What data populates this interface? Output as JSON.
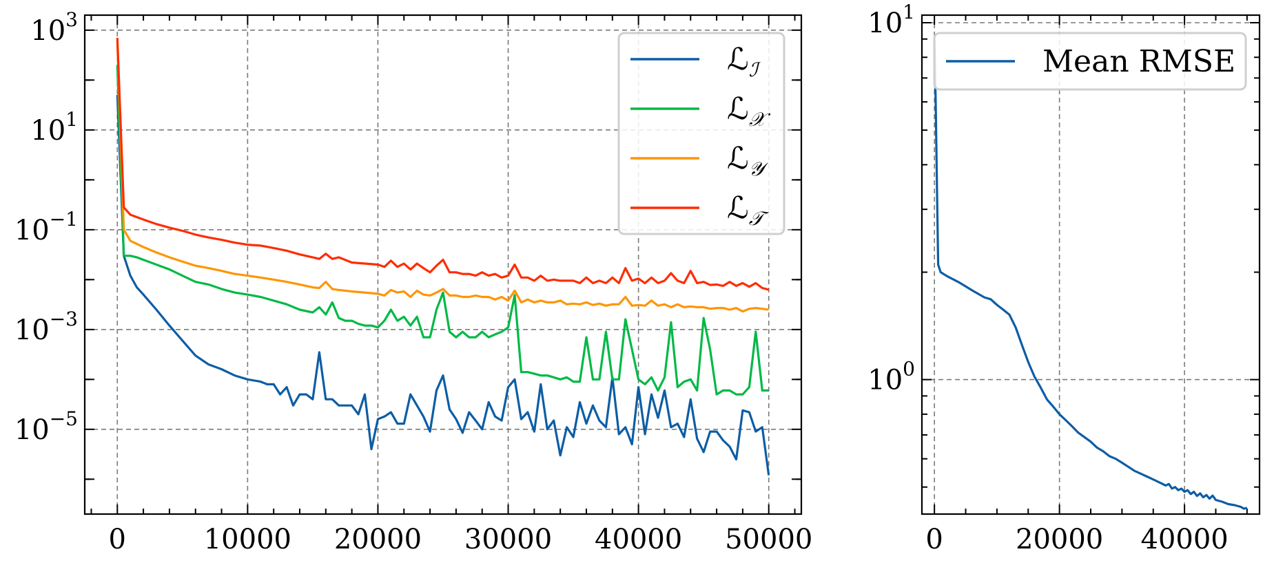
{
  "chart_data": [
    {
      "type": "line",
      "title": "",
      "xlabel": "",
      "ylabel": "",
      "yscale": "log",
      "xlim": [
        -2500,
        52500
      ],
      "ylim": [
        2e-07,
        2000
      ],
      "xticks": [
        0,
        10000,
        20000,
        30000,
        40000,
        50000
      ],
      "xtick_labels": [
        "0",
        "10000",
        "20000",
        "30000",
        "40000",
        "50000"
      ],
      "yticks": [
        1e-05,
        0.001,
        0.1,
        10,
        1000
      ],
      "ytick_labels": [
        {
          "base": "10",
          "exp": "−5"
        },
        {
          "base": "10",
          "exp": "−3"
        },
        {
          "base": "10",
          "exp": "−1"
        },
        {
          "base": "10",
          "exp": "1"
        },
        {
          "base": "10",
          "exp": "3"
        }
      ],
      "grid": true,
      "legend": "top-right",
      "series": [
        {
          "name": "ℒ",
          "subscript": "ℐ",
          "color": "#0c5da5",
          "x": [
            0,
            500,
            1000,
            1500,
            2000,
            3000,
            4000,
            5000,
            6000,
            7000,
            8000,
            9000,
            10000,
            11000,
            11500,
            12000,
            12500,
            13000,
            13500,
            14000,
            14500,
            15000,
            15500,
            16000,
            16500,
            17000,
            17500,
            18000,
            18500,
            19000,
            19500,
            20000,
            20500,
            21000,
            21500,
            22000,
            22500,
            23000,
            23500,
            24000,
            24500,
            25000,
            25500,
            26000,
            26500,
            27000,
            27500,
            28000,
            28500,
            29000,
            29500,
            30000,
            30500,
            31000,
            31500,
            32000,
            32500,
            33000,
            33500,
            34000,
            34500,
            35000,
            35500,
            36000,
            36500,
            37000,
            37500,
            38000,
            38500,
            39000,
            39500,
            40000,
            40500,
            41000,
            41500,
            42000,
            42500,
            43000,
            43500,
            44000,
            44500,
            45000,
            45500,
            46000,
            46500,
            47000,
            47500,
            48000,
            48500,
            49000,
            49500,
            50000
          ],
          "values": [
            50,
            0.03,
            0.012,
            0.007,
            0.005,
            0.0025,
            0.0012,
            0.0006,
            0.0003,
            0.0002,
            0.00016,
            0.00012,
            0.0001,
            9e-05,
            8e-05,
            8e-05,
            5e-05,
            7e-05,
            3e-05,
            5e-05,
            5e-05,
            4e-05,
            0.00035,
            4e-05,
            4e-05,
            3e-05,
            3e-05,
            3e-05,
            2e-05,
            5e-05,
            4e-06,
            1.6e-05,
            1.8e-05,
            2.2e-05,
            1.3e-05,
            1.3e-05,
            5e-05,
            3e-05,
            1.8e-05,
            9e-06,
            6e-05,
            0.00012,
            2.5e-05,
            1.6e-05,
            8.5e-06,
            2.2e-05,
            1.5e-05,
            1e-05,
            3.5e-05,
            1.8e-05,
            1.5e-05,
            7e-05,
            0.0001,
            1.6e-05,
            2.2e-05,
            9e-06,
            8e-05,
            1e-05,
            1.5e-05,
            3e-06,
            1.1e-05,
            7e-06,
            3.5e-05,
            1.3e-05,
            3e-05,
            1.5e-05,
            1.1e-05,
            0.00011,
            8e-06,
            1.1e-05,
            5e-06,
            7e-05,
            8e-06,
            5e-05,
            1.7e-05,
            6e-05,
            1.1e-05,
            1.3e-05,
            7e-06,
            4e-05,
            6.5e-06,
            3.5e-06,
            9e-06,
            9e-06,
            6e-06,
            4.5e-06,
            2.5e-06,
            2.4e-05,
            2.2e-05,
            9e-06,
            1.1e-05,
            1.2e-06
          ]
        },
        {
          "name": "ℒ",
          "subscript": "𝒳",
          "color": "#00b945",
          "x": [
            0,
            500,
            1000,
            1500,
            2000,
            3000,
            4000,
            5000,
            6000,
            7000,
            8000,
            9000,
            10000,
            11000,
            12000,
            13000,
            14000,
            15000,
            15500,
            16000,
            16500,
            17000,
            17500,
            18000,
            18500,
            19000,
            19500,
            20000,
            20500,
            21000,
            21500,
            22000,
            22500,
            23000,
            23500,
            24000,
            24500,
            25000,
            25500,
            26000,
            26500,
            27000,
            27500,
            28000,
            28500,
            29000,
            29500,
            30000,
            30500,
            31000,
            31500,
            32000,
            32500,
            33000,
            33500,
            34000,
            34500,
            35000,
            35500,
            36000,
            36500,
            37000,
            37500,
            38000,
            38500,
            39000,
            39500,
            40000,
            40500,
            41000,
            41500,
            42000,
            42500,
            43000,
            43500,
            44000,
            44500,
            45000,
            45500,
            46000,
            46500,
            47000,
            47500,
            48000,
            48500,
            49000,
            49500,
            50000
          ],
          "values": [
            200,
            0.03,
            0.03,
            0.028,
            0.025,
            0.02,
            0.016,
            0.012,
            0.009,
            0.008,
            0.0065,
            0.0055,
            0.005,
            0.0045,
            0.0038,
            0.0032,
            0.0025,
            0.0022,
            0.0028,
            0.002,
            0.0035,
            0.0017,
            0.0015,
            0.0015,
            0.0013,
            0.0012,
            0.0012,
            0.0011,
            0.0015,
            0.0025,
            0.0015,
            0.0018,
            0.0012,
            0.0018,
            0.0007,
            0.0007,
            0.0025,
            0.0055,
            0.0009,
            0.0007,
            0.0009,
            0.0007,
            0.0007,
            0.0009,
            0.0007,
            0.0008,
            0.0009,
            0.0011,
            0.0049,
            0.00014,
            0.00014,
            0.00013,
            0.00012,
            0.00012,
            0.00011,
            0.0001,
            0.00011,
            9e-05,
            9e-05,
            0.0007,
            0.0001,
            0.0001,
            0.0009,
            0.0001,
            0.0001,
            0.0016,
            0.0004,
            0.0001,
            8e-05,
            0.00011,
            6e-05,
            0.00011,
            0.0014,
            7e-05,
            9e-05,
            0.0001,
            6e-05,
            0.0017,
            0.0004,
            5e-05,
            6e-05,
            6e-05,
            5e-05,
            5e-05,
            7e-05,
            0.0009,
            6e-05,
            6e-05
          ]
        },
        {
          "name": "ℒ",
          "subscript": "𝒴",
          "color": "#ff9500",
          "x": [
            0,
            500,
            1000,
            2000,
            3000,
            4000,
            5000,
            6000,
            7000,
            8000,
            9000,
            10000,
            11000,
            12000,
            13000,
            14000,
            15000,
            15500,
            16000,
            16500,
            17000,
            18000,
            19000,
            20000,
            20500,
            21000,
            21500,
            22000,
            22500,
            23000,
            23500,
            24000,
            24500,
            25000,
            25500,
            26000,
            26500,
            27000,
            27500,
            28000,
            28500,
            29000,
            29500,
            30000,
            30500,
            31000,
            31500,
            32000,
            32500,
            33000,
            33500,
            34000,
            34500,
            35000,
            35500,
            36000,
            36500,
            37000,
            37500,
            38000,
            38500,
            39000,
            39500,
            40000,
            40500,
            41000,
            41500,
            42000,
            42500,
            43000,
            43500,
            44000,
            44500,
            45000,
            45500,
            46000,
            46500,
            47000,
            47500,
            48000,
            48500,
            49000,
            49500,
            50000
          ],
          "values": [
            600,
            0.1,
            0.06,
            0.045,
            0.035,
            0.028,
            0.023,
            0.019,
            0.017,
            0.015,
            0.013,
            0.012,
            0.011,
            0.01,
            0.009,
            0.008,
            0.007,
            0.0068,
            0.009,
            0.0065,
            0.0062,
            0.0058,
            0.0055,
            0.0052,
            0.0048,
            0.0062,
            0.0055,
            0.0058,
            0.0045,
            0.006,
            0.005,
            0.0048,
            0.0055,
            0.0065,
            0.0048,
            0.0048,
            0.0045,
            0.0045,
            0.0048,
            0.0045,
            0.0045,
            0.004,
            0.0045,
            0.0038,
            0.006,
            0.0035,
            0.004,
            0.0035,
            0.0038,
            0.0035,
            0.0035,
            0.0038,
            0.0032,
            0.0033,
            0.0032,
            0.0035,
            0.0031,
            0.0033,
            0.003,
            0.0032,
            0.0032,
            0.0045,
            0.003,
            0.0031,
            0.003,
            0.0038,
            0.003,
            0.0032,
            0.0028,
            0.0032,
            0.0028,
            0.0029,
            0.0028,
            0.0028,
            0.0026,
            0.0027,
            0.0027,
            0.0025,
            0.0027,
            0.0023,
            0.0026,
            0.0027,
            0.0026,
            0.0025
          ]
        },
        {
          "name": "ℒ",
          "subscript": "𝒯",
          "color": "#ff2c00",
          "x": [
            0,
            500,
            1000,
            2000,
            3000,
            4000,
            5000,
            6000,
            7000,
            8000,
            9000,
            10000,
            11000,
            12000,
            13000,
            14000,
            15000,
            15500,
            16000,
            16500,
            17000,
            18000,
            19000,
            20000,
            20500,
            21000,
            21500,
            22000,
            22500,
            23000,
            23500,
            24000,
            24500,
            25000,
            25500,
            26000,
            26500,
            27000,
            27500,
            28000,
            28500,
            29000,
            29500,
            30000,
            30500,
            31000,
            31500,
            32000,
            32500,
            33000,
            33500,
            34000,
            34500,
            35000,
            35500,
            36000,
            36500,
            37000,
            37500,
            38000,
            38500,
            39000,
            39500,
            40000,
            40500,
            41000,
            41500,
            42000,
            42500,
            43000,
            43500,
            44000,
            44500,
            45000,
            45500,
            46000,
            46500,
            47000,
            47500,
            48000,
            48500,
            49000,
            49500,
            50000
          ],
          "values": [
            700,
            0.28,
            0.2,
            0.16,
            0.13,
            0.11,
            0.095,
            0.08,
            0.07,
            0.063,
            0.055,
            0.05,
            0.048,
            0.043,
            0.038,
            0.032,
            0.028,
            0.026,
            0.033,
            0.026,
            0.028,
            0.022,
            0.021,
            0.02,
            0.018,
            0.024,
            0.018,
            0.021,
            0.016,
            0.021,
            0.017,
            0.014,
            0.019,
            0.025,
            0.014,
            0.014,
            0.013,
            0.013,
            0.012,
            0.014,
            0.012,
            0.013,
            0.011,
            0.012,
            0.02,
            0.011,
            0.011,
            0.0095,
            0.012,
            0.0095,
            0.01,
            0.0095,
            0.0095,
            0.0095,
            0.0085,
            0.011,
            0.0085,
            0.0095,
            0.0085,
            0.011,
            0.0085,
            0.017,
            0.0095,
            0.0105,
            0.0085,
            0.011,
            0.0085,
            0.0095,
            0.0135,
            0.0095,
            0.0085,
            0.015,
            0.0085,
            0.009,
            0.0078,
            0.008,
            0.0075,
            0.009,
            0.0075,
            0.0085,
            0.0072,
            0.0085,
            0.0068,
            0.0063
          ]
        }
      ]
    },
    {
      "type": "line",
      "title": "",
      "xlabel": "",
      "ylabel": "",
      "yscale": "log",
      "xlim": [
        -2000,
        52000
      ],
      "ylim": [
        0.42,
        10.5
      ],
      "xticks": [
        0,
        20000,
        40000
      ],
      "xtick_labels": [
        "0",
        "20000",
        "40000"
      ],
      "yticks": [
        1,
        10
      ],
      "ytick_labels": [
        {
          "base": "10",
          "exp": "0"
        },
        {
          "base": "10",
          "exp": "1"
        }
      ],
      "grid": true,
      "legend": "top-left",
      "series": [
        {
          "name": "Mean RMSE",
          "color": "#0c5da5",
          "x": [
            0,
            200,
            400,
            600,
            1000,
            2000,
            4000,
            6000,
            8000,
            9000,
            10000,
            11000,
            12000,
            13000,
            14000,
            15000,
            16000,
            17000,
            18000,
            19000,
            20000,
            21000,
            22000,
            23000,
            24000,
            25000,
            26000,
            27000,
            28000,
            29000,
            30000,
            31000,
            32000,
            33000,
            34000,
            35000,
            36000,
            37000,
            37500,
            38000,
            38500,
            39000,
            39500,
            40000,
            40500,
            41000,
            41500,
            42000,
            42500,
            43000,
            43500,
            44000,
            44500,
            45000,
            46000,
            47000,
            48000,
            49000,
            49500,
            50000
          ],
          "values": [
            9.0,
            6.0,
            3.5,
            2.1,
            2.0,
            1.95,
            1.87,
            1.78,
            1.7,
            1.68,
            1.62,
            1.57,
            1.52,
            1.4,
            1.25,
            1.12,
            1.02,
            0.95,
            0.88,
            0.84,
            0.8,
            0.77,
            0.74,
            0.71,
            0.69,
            0.67,
            0.645,
            0.63,
            0.61,
            0.6,
            0.585,
            0.57,
            0.555,
            0.545,
            0.535,
            0.525,
            0.515,
            0.505,
            0.51,
            0.495,
            0.5,
            0.49,
            0.495,
            0.485,
            0.49,
            0.478,
            0.485,
            0.472,
            0.48,
            0.468,
            0.475,
            0.464,
            0.473,
            0.46,
            0.455,
            0.448,
            0.445,
            0.44,
            0.435,
            0.437
          ]
        }
      ]
    }
  ]
}
